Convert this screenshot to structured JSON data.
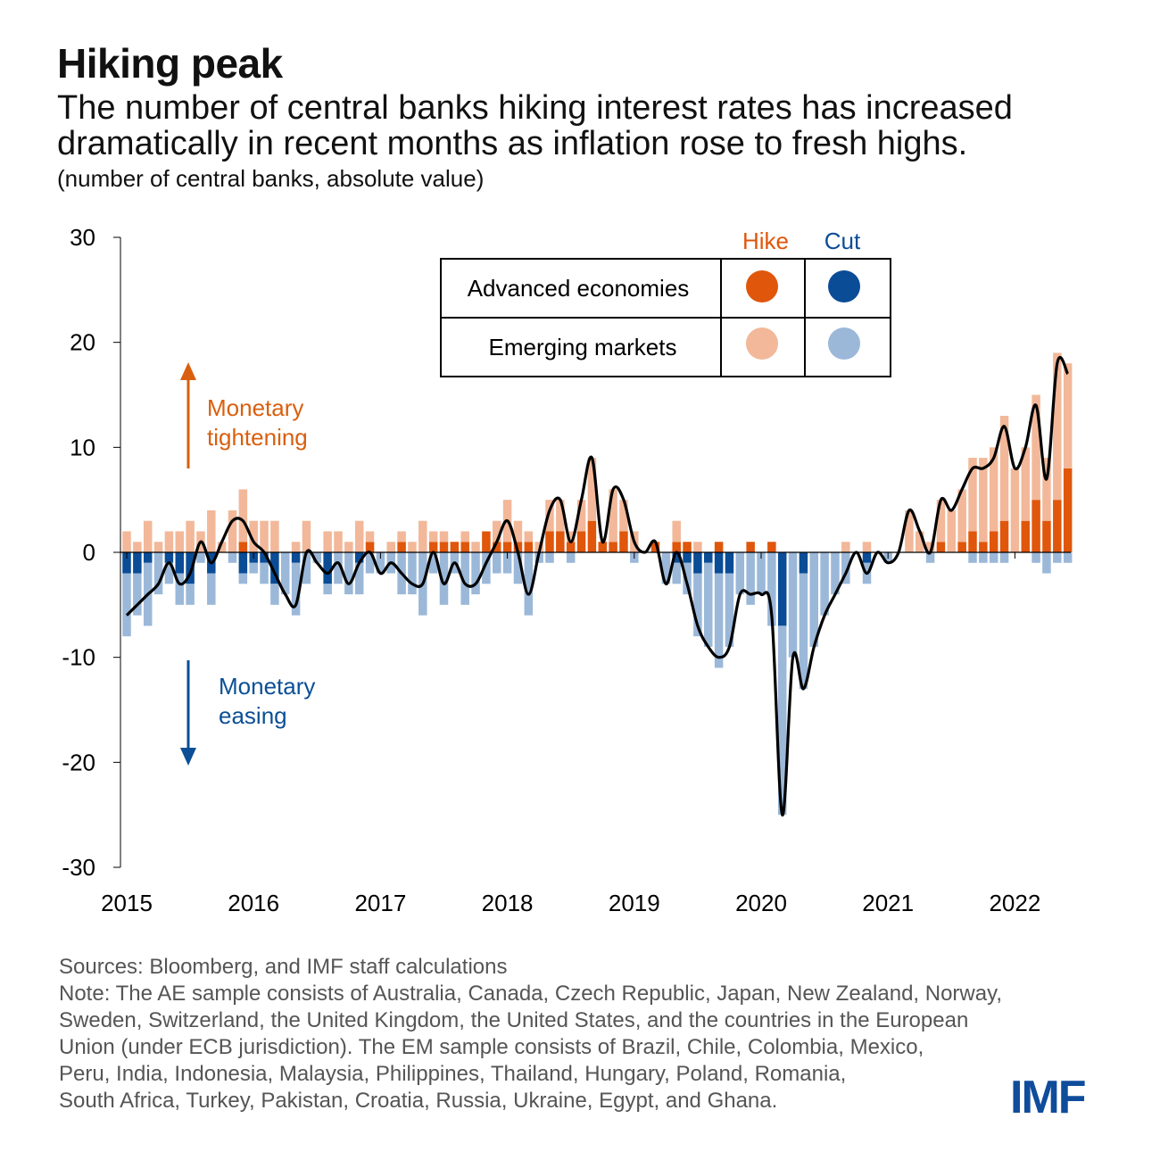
{
  "title": "Hiking peak",
  "subtitle_lines": [
    "The number of central banks hiking interest rates has increased",
    "dramatically in recent months as inflation rose to fresh highs."
  ],
  "unit_note": "(number of central banks, absolute value)",
  "footer": {
    "sources": "Sources: Bloomberg, and IMF staff calculations",
    "note_lines": [
      "Note: The AE sample consists of Australia, Canada, Czech Republic, Japan, New Zealand, Norway,",
      "Sweden, Switzerland, the United Kingdom, the United States, and the countries in the European",
      "Union (under ECB jurisdiction). The EM sample consists of Brazil, Chile, Colombia, Mexico,",
      "Peru, India, Indonesia, Malaysia, Philippines, Thailand, Hungary, Poland, Romania,",
      "South Africa, Turkey, Pakistan, Croatia, Russia, Ukraine, Egypt, and Ghana."
    ]
  },
  "logo": "IMF",
  "colors": {
    "ae_hike": "#e0560b",
    "em_hike": "#f2b899",
    "ae_cut": "#0a4c96",
    "em_cut": "#9bb8d9",
    "line": "#000000",
    "tightening": "#d95f0e",
    "easing": "#0b4f96",
    "logo": "#0f4c9b"
  },
  "chart_data": {
    "type": "bar",
    "stacked": true,
    "ylim": [
      -30,
      30
    ],
    "yticks": [
      30,
      20,
      10,
      0,
      -10,
      -20,
      -30
    ],
    "xtick_labels": [
      "2015",
      "2016",
      "2017",
      "2018",
      "2019",
      "2020",
      "2021",
      "2022"
    ],
    "grid": false,
    "legend": {
      "position": "top-center",
      "col_headers": [
        "Hike",
        "Cut"
      ],
      "rows": [
        "Advanced economies",
        "Emerging markets"
      ]
    },
    "annotations": {
      "tightening": [
        "Monetary",
        "tightening"
      ],
      "easing": [
        "Monetary",
        "easing"
      ]
    },
    "x": [
      "2015-01",
      "2015-02",
      "2015-03",
      "2015-04",
      "2015-05",
      "2015-06",
      "2015-07",
      "2015-08",
      "2015-09",
      "2015-10",
      "2015-11",
      "2015-12",
      "2016-01",
      "2016-02",
      "2016-03",
      "2016-04",
      "2016-05",
      "2016-06",
      "2016-07",
      "2016-08",
      "2016-09",
      "2016-10",
      "2016-11",
      "2016-12",
      "2017-01",
      "2017-02",
      "2017-03",
      "2017-04",
      "2017-05",
      "2017-06",
      "2017-07",
      "2017-08",
      "2017-09",
      "2017-10",
      "2017-11",
      "2017-12",
      "2018-01",
      "2018-02",
      "2018-03",
      "2018-04",
      "2018-05",
      "2018-06",
      "2018-07",
      "2018-08",
      "2018-09",
      "2018-10",
      "2018-11",
      "2018-12",
      "2019-01",
      "2019-02",
      "2019-03",
      "2019-04",
      "2019-05",
      "2019-06",
      "2019-07",
      "2019-08",
      "2019-09",
      "2019-10",
      "2019-11",
      "2019-12",
      "2020-01",
      "2020-02",
      "2020-03",
      "2020-04",
      "2020-05",
      "2020-06",
      "2020-07",
      "2020-08",
      "2020-09",
      "2020-10",
      "2020-11",
      "2020-12",
      "2021-01",
      "2021-02",
      "2021-03",
      "2021-04",
      "2021-05",
      "2021-06",
      "2021-07",
      "2021-08",
      "2021-09",
      "2021-10",
      "2021-11",
      "2021-12",
      "2022-01",
      "2022-02",
      "2022-03",
      "2022-04",
      "2022-05",
      "2022-06"
    ],
    "series": [
      {
        "name": "Advanced economies",
        "kind": "Hike",
        "values": [
          0,
          0,
          0,
          0,
          0,
          0,
          0,
          0,
          0,
          0,
          0,
          1,
          0,
          0,
          0,
          0,
          0,
          0,
          0,
          0,
          0,
          0,
          0,
          1,
          0,
          0,
          1,
          0,
          0,
          1,
          1,
          1,
          1,
          0,
          2,
          1,
          1,
          1,
          1,
          0,
          2,
          2,
          1,
          2,
          3,
          1,
          1,
          2,
          0,
          0,
          1,
          0,
          1,
          1,
          0,
          0,
          1,
          0,
          0,
          1,
          0,
          1,
          0,
          0,
          0,
          0,
          0,
          0,
          0,
          0,
          0,
          0,
          0,
          0,
          0,
          0,
          0,
          1,
          0,
          1,
          2,
          1,
          2,
          3,
          0,
          3,
          5,
          3,
          5,
          8
        ]
      },
      {
        "name": "Emerging markets",
        "kind": "Hike",
        "values": [
          2,
          1,
          3,
          1,
          2,
          2,
          3,
          2,
          4,
          1,
          4,
          5,
          3,
          3,
          3,
          0,
          1,
          3,
          0,
          2,
          2,
          1,
          3,
          1,
          0,
          1,
          1,
          1,
          3,
          1,
          1,
          0,
          1,
          1,
          0,
          2,
          4,
          2,
          1,
          1,
          3,
          3,
          1,
          3,
          6,
          0,
          5,
          3,
          2,
          0,
          0,
          0,
          2,
          0,
          1,
          0,
          0,
          0,
          0,
          0,
          0,
          0,
          0,
          0,
          0,
          0,
          0,
          0,
          1,
          0,
          1,
          0,
          0,
          0,
          4,
          2,
          1,
          4,
          4,
          5,
          7,
          8,
          8,
          10,
          8,
          7,
          10,
          6,
          14,
          10
        ]
      },
      {
        "name": "Advanced economies",
        "kind": "Cut",
        "values": [
          -2,
          -2,
          -1,
          0,
          -1,
          -2,
          -3,
          0,
          -2,
          0,
          0,
          -2,
          -1,
          -1,
          -3,
          0,
          -1,
          0,
          0,
          -3,
          0,
          0,
          -1,
          0,
          0,
          0,
          0,
          0,
          0,
          0,
          0,
          0,
          0,
          0,
          0,
          0,
          0,
          0,
          0,
          0,
          0,
          0,
          0,
          0,
          0,
          0,
          0,
          0,
          0,
          0,
          0,
          0,
          -1,
          -1,
          -2,
          -1,
          -2,
          -2,
          0,
          0,
          0,
          0,
          -7,
          0,
          -2,
          0,
          0,
          0,
          0,
          0,
          -1,
          0,
          0,
          0,
          0,
          0,
          0,
          0,
          0,
          0,
          0,
          0,
          0,
          0,
          0,
          0,
          0,
          0,
          0,
          0
        ]
      },
      {
        "name": "Emerging markets",
        "kind": "Cut",
        "values": [
          -6,
          -4,
          -6,
          -4,
          -2,
          -3,
          -2,
          -1,
          -3,
          0,
          -1,
          -1,
          -1,
          -2,
          -2,
          -4,
          -5,
          -3,
          -1,
          -1,
          -3,
          -4,
          -3,
          -2,
          -2,
          -2,
          -4,
          -4,
          -6,
          -2,
          -5,
          -2,
          -5,
          -4,
          -3,
          -2,
          -2,
          -3,
          -6,
          -1,
          -1,
          0,
          -1,
          0,
          0,
          0,
          0,
          0,
          -1,
          0,
          0,
          -3,
          -2,
          -3,
          -6,
          -8,
          -9,
          -7,
          -4,
          -5,
          -4,
          -7,
          -18,
          -10,
          -11,
          -9,
          -6,
          -4,
          -3,
          0,
          -2,
          0,
          -1,
          0,
          0,
          0,
          -1,
          0,
          0,
          0,
          -1,
          -1,
          -1,
          -1,
          0,
          0,
          -1,
          -2,
          -1,
          -1
        ]
      }
    ]
  }
}
